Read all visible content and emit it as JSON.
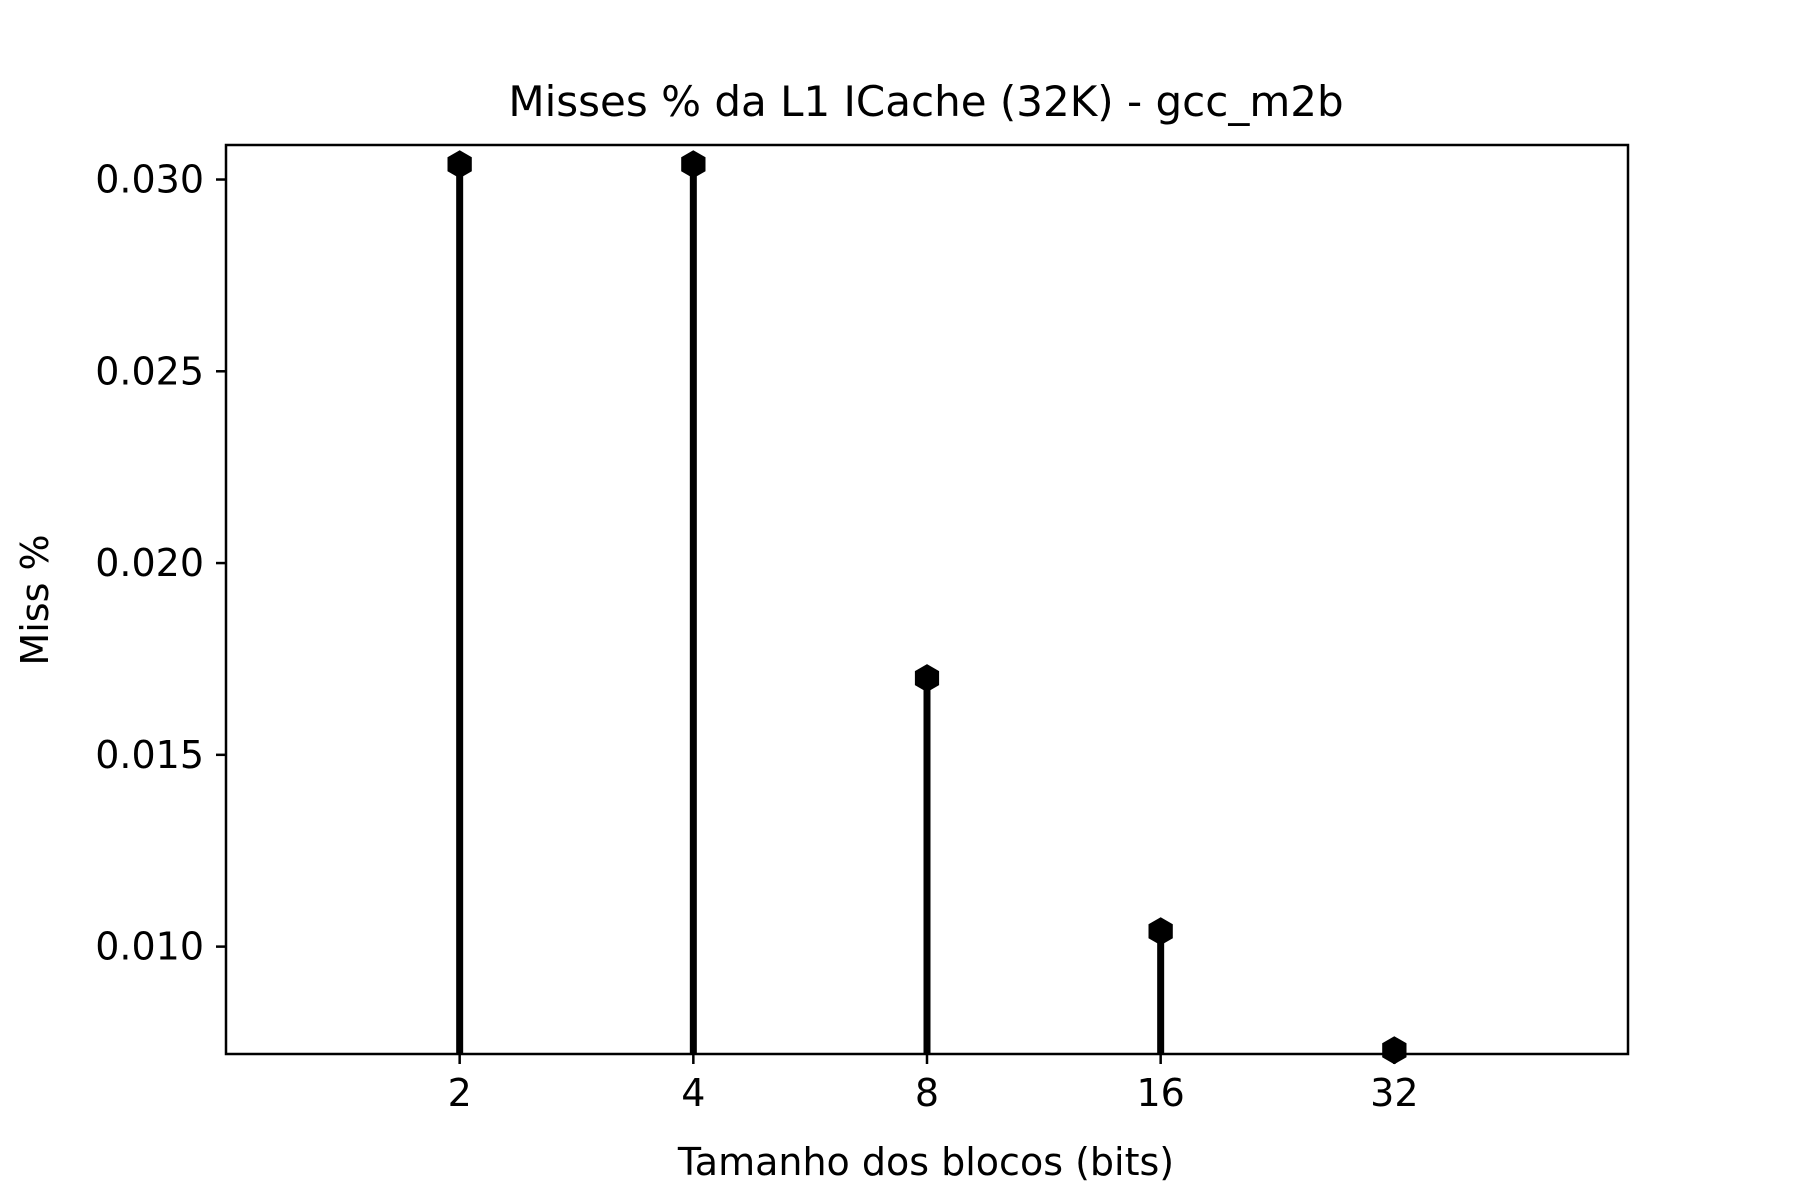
{
  "chart_data": {
    "type": "stem",
    "title": "Misses % da L1 ICache (32K) - gcc_m2b",
    "xlabel": "Tamanho dos blocos (bits)",
    "ylabel": "Miss %",
    "categories": [
      "2",
      "4",
      "8",
      "16",
      "32"
    ],
    "values": [
      0.0304,
      0.0304,
      0.017,
      0.0104,
      0.0073
    ],
    "ylim": [
      0.0072,
      0.0309
    ],
    "xlim": [
      0,
      6
    ],
    "yticks": [
      "0.010",
      "0.015",
      "0.020",
      "0.025",
      "0.030"
    ],
    "ytick_values": [
      0.01,
      0.015,
      0.02,
      0.025,
      0.03
    ],
    "grid": false,
    "legend": "none",
    "color": "#000000",
    "marker": "hexagon"
  }
}
